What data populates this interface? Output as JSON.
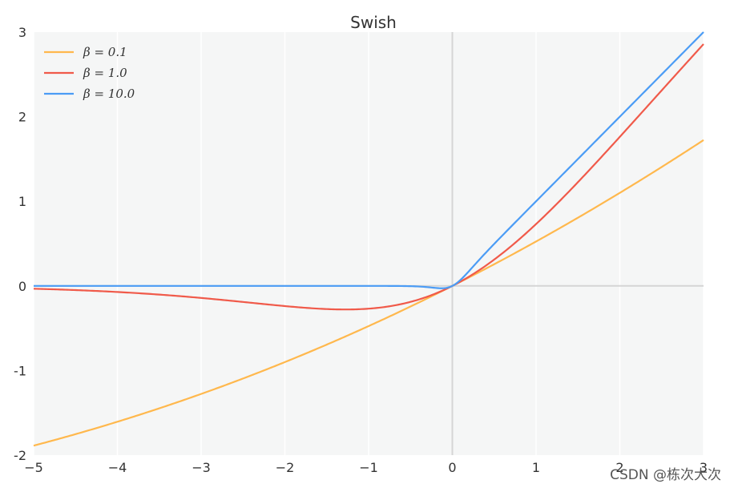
{
  "chart_data": {
    "type": "line",
    "title": "Swish",
    "xlabel": "",
    "ylabel": "",
    "xlim": [
      -5,
      3
    ],
    "ylim": [
      -2,
      3
    ],
    "x_ticks": [
      -5,
      -4,
      -3,
      -2,
      -1,
      0,
      1,
      2,
      3
    ],
    "x_tick_labels": [
      "−5",
      "−4",
      "−3",
      "−2",
      "−1",
      "0",
      "1",
      "2",
      "3"
    ],
    "y_ticks": [
      -2,
      -1,
      0,
      1,
      2,
      3
    ],
    "y_tick_labels": [
      "-2",
      "-1",
      "0",
      "1",
      "2",
      "3"
    ],
    "function": "x * sigmoid(beta * x)",
    "legend_position": "top-left",
    "series": [
      {
        "name": "β = 0.1",
        "beta": 0.1,
        "color": "#ffb84d",
        "x": [
          -5,
          -4,
          -3,
          -2,
          -1,
          0,
          1,
          2,
          3
        ],
        "values": [
          -1.89,
          -1.6,
          -1.28,
          -0.9,
          -0.48,
          0.0,
          0.52,
          1.1,
          1.72
        ]
      },
      {
        "name": "β = 1.0",
        "beta": 1.0,
        "color": "#f05a4a",
        "x": [
          -5,
          -4,
          -3,
          -2,
          -1.28,
          -1,
          0,
          1,
          2,
          3
        ],
        "values": [
          -0.03,
          -0.07,
          -0.14,
          -0.24,
          -0.28,
          -0.27,
          0.0,
          0.73,
          1.76,
          2.86
        ]
      },
      {
        "name": "β = 10.0",
        "beta": 10.0,
        "color": "#4b9cf5",
        "x": [
          -5,
          -1,
          -0.5,
          -0.13,
          0,
          1,
          2,
          3
        ],
        "values": [
          0.0,
          0.0,
          0.0,
          -0.03,
          0.0,
          1.0,
          2.0,
          3.0
        ]
      }
    ],
    "background": "#f5f6f6",
    "zero_line_color": "#d5d5d5"
  },
  "watermark": "CSDN @栋次大次"
}
